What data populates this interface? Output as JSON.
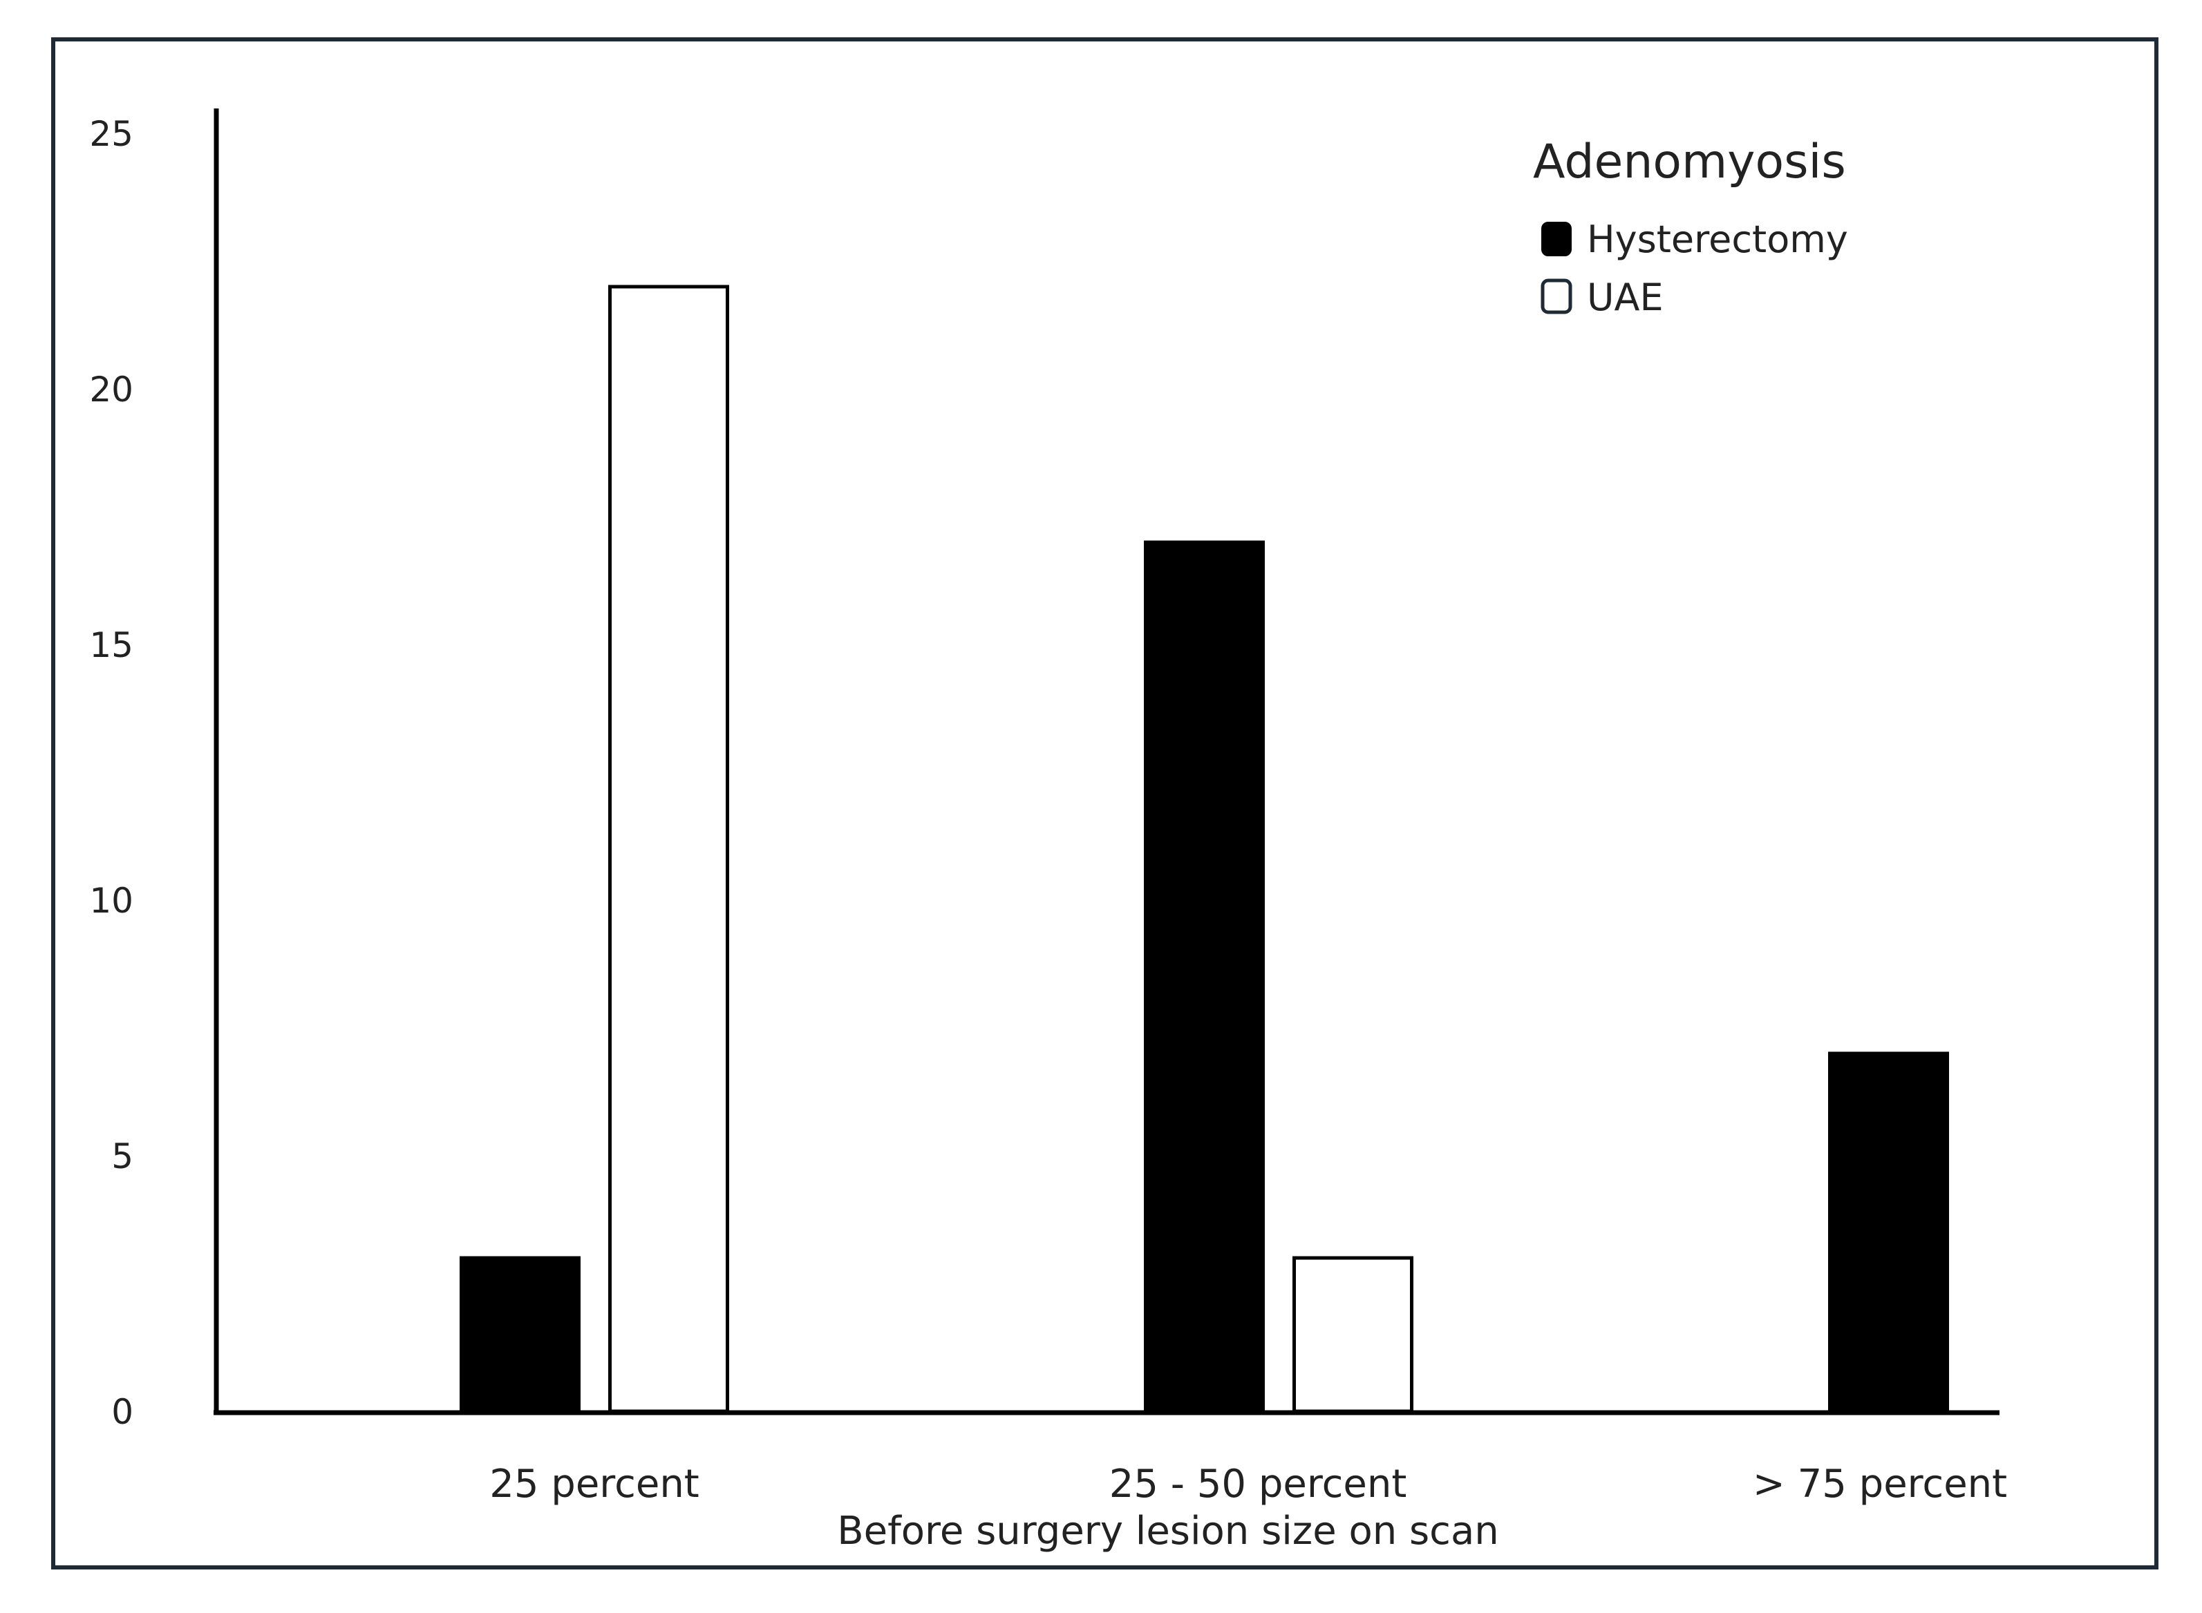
{
  "chart_data": {
    "type": "bar",
    "categories": [
      "25 percent",
      "25 - 50 percent",
      "> 75 percent"
    ],
    "series": [
      {
        "name": "Hysterectomy",
        "values": [
          3,
          17,
          7
        ],
        "fill": "#000000"
      },
      {
        "name": "UAE",
        "values": [
          22,
          3,
          0
        ],
        "fill": "#ffffff"
      }
    ],
    "xlabel": "Before surgery lesion size on scan",
    "ylabel": "",
    "ylim": [
      0,
      25
    ],
    "yticks": [
      "0",
      "5",
      "10",
      "15",
      "20",
      "25"
    ],
    "grid": false,
    "legend": {
      "title": "Adenomyosis",
      "position": "top-right"
    }
  }
}
